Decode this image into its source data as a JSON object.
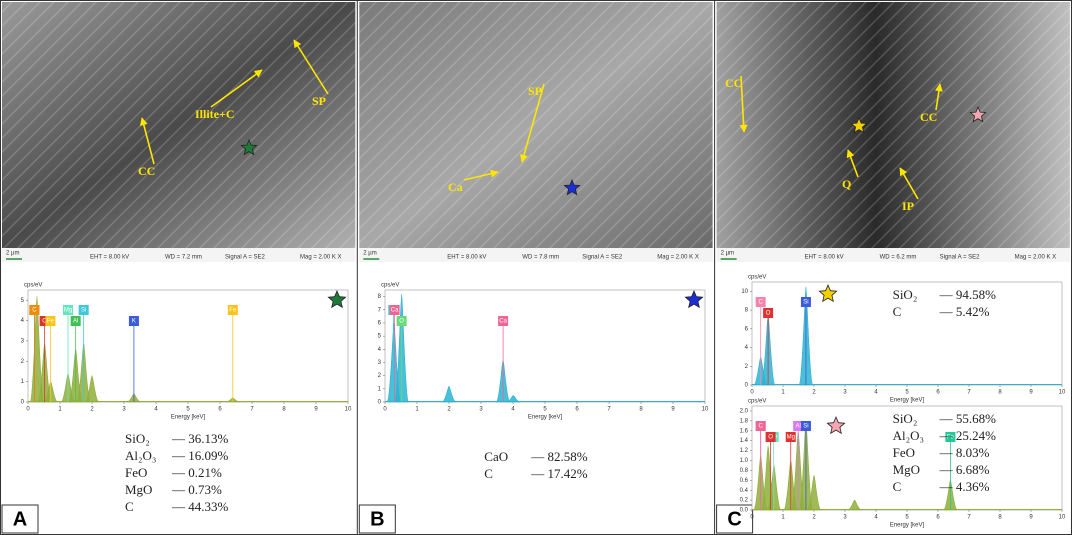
{
  "panels": [
    {
      "letter": "A",
      "sem": {
        "labels": [
          "Illite+C",
          "SP",
          "CC"
        ],
        "scale": "2 µm",
        "star": "#1f7a3a",
        "info": [
          "EHT = 8.00 kV",
          "WD = 7.2 mm",
          "Signal A = SE2",
          "Mag =   2.00 K X"
        ]
      },
      "spectra": [
        {
          "y_label": "cps/eV",
          "x_label": "Energy [keV]",
          "color": "#8fae3a",
          "star": "#1f7a3a",
          "xlim": [
            0,
            10
          ],
          "xticks": [
            0,
            1,
            2,
            3,
            4,
            5,
            6,
            7,
            8,
            9,
            10
          ],
          "ylim": [
            0,
            5.5
          ],
          "yticks": [
            0,
            1,
            2,
            3,
            4,
            5
          ],
          "peaks": {
            "x": [
              0.28,
              0.52,
              0.71,
              1.25,
              1.49,
              1.74,
              2.0,
              3.31,
              6.4
            ],
            "values": [
              5.2,
              2.9,
              1.0,
              1.4,
              2.6,
              2.9,
              1.3,
              0.4,
              0.2
            ]
          },
          "elements": [
            {
              "name": "K",
              "x": 0.2,
              "color": "#3b5bdb"
            },
            {
              "name": "O",
              "x": 0.52,
              "color": "#e03131"
            },
            {
              "name": "C",
              "x": 0.2,
              "color": "#f08c00"
            },
            {
              "name": "Fe",
              "x": 0.7,
              "color": "#fcc419"
            },
            {
              "name": "Mg",
              "x": 1.25,
              "color": "#63e6be"
            },
            {
              "name": "Al",
              "x": 1.49,
              "color": "#40c057"
            },
            {
              "name": "Si",
              "x": 1.74,
              "color": "#3bc9db"
            },
            {
              "name": "K",
              "x": 3.31,
              "color": "#3b5bdb"
            },
            {
              "name": "Fe",
              "x": 6.4,
              "color": "#fcc419"
            }
          ],
          "composition": [
            {
              "name": "SiO₂",
              "value": "— 36.13%"
            },
            {
              "name": "Al₂O₃",
              "value": "— 16.09%"
            },
            {
              "name": "FeO",
              "value": "— 0.21%"
            },
            {
              "name": "MgO",
              "value": "— 0.73%"
            },
            {
              "name": "C",
              "value": "— 44.33%"
            }
          ]
        }
      ]
    },
    {
      "letter": "B",
      "sem": {
        "labels": [
          "SP",
          "Ca"
        ],
        "scale": "2 µm",
        "star": "#1c2fd6",
        "info": [
          "EHT = 8.00 kV",
          "WD = 7.8 mm",
          "Signal A = SE2",
          "Mag =   2.00 K X"
        ]
      },
      "spectra": [
        {
          "y_label": "cps/eV",
          "x_label": "Energy [keV]",
          "color": "#2bb3d1",
          "star": "#1c2fd6",
          "xlim": [
            0,
            10
          ],
          "xticks": [
            0,
            1,
            2,
            3,
            4,
            5,
            6,
            7,
            8,
            9,
            10
          ],
          "ylim": [
            0,
            8.5
          ],
          "yticks": [
            0,
            1,
            2,
            3,
            4,
            5,
            6,
            7,
            8
          ],
          "peaks": {
            "x": [
              0.28,
              0.52,
              2.0,
              3.69,
              4.01
            ],
            "values": [
              6.0,
              8.2,
              1.2,
              3.2,
              0.5
            ]
          },
          "elements": [
            {
              "name": "C",
              "x": 0.26,
              "color": "#3bc9db"
            },
            {
              "name": "O",
              "x": 0.52,
              "color": "#69db7c"
            },
            {
              "name": "Ca",
              "x": 0.3,
              "color": "#f06595"
            },
            {
              "name": "Ca",
              "x": 3.69,
              "color": "#f06595"
            }
          ],
          "composition": [
            {
              "name": "CaO",
              "value": "— 82.58%"
            },
            {
              "name": "C",
              "value": "— 17.42%"
            }
          ]
        }
      ]
    },
    {
      "letter": "C",
      "sem": {
        "labels": [
          "CC",
          "CC",
          "Q",
          "IP"
        ],
        "scale": "2 µm",
        "star": "#f5d000",
        "star2": "#f4a6b0",
        "info": [
          "EHT = 8.00 kV",
          "WD = 6.2 mm",
          "Signal A = SE2",
          "Mag =   2.00 K X"
        ]
      },
      "spectra": [
        {
          "y_label": "cps/eV",
          "x_label": "Energy [keV]",
          "color": "#2bb3d1",
          "star": "#f5d000",
          "xlim": [
            0,
            10
          ],
          "xticks": [
            0,
            1,
            2,
            3,
            4,
            5,
            6,
            7,
            8,
            9,
            10
          ],
          "ylim": [
            0,
            11
          ],
          "yticks": [
            0,
            2,
            4,
            6,
            8,
            10
          ],
          "peaks": {
            "x": [
              0.28,
              0.52,
              1.74
            ],
            "values": [
              3.0,
              7.5,
              10.5
            ]
          },
          "elements": [
            {
              "name": "C",
              "x": 0.28,
              "color": "#f783ac"
            },
            {
              "name": "O",
              "x": 0.52,
              "color": "#e03131"
            },
            {
              "name": "Si",
              "x": 1.74,
              "color": "#3b5bdb"
            }
          ],
          "composition": [
            {
              "name": "SiO₂",
              "value": "— 94.58%"
            },
            {
              "name": "C",
              "value": "— 5.42%"
            }
          ]
        },
        {
          "y_label": "cps/eV",
          "x_label": "Energy [keV]",
          "color": "#8fae3a",
          "star": "#f4a6b0",
          "xlim": [
            0,
            10
          ],
          "xticks": [
            0,
            1,
            2,
            3,
            4,
            5,
            6,
            7,
            8,
            9,
            10
          ],
          "ylim": [
            0,
            2.1
          ],
          "yticks": [
            {
              "value": 0,
              "label": "0.0"
            },
            {
              "value": 0.2,
              "label": "0.2"
            },
            {
              "value": 0.4,
              "label": "0.4"
            },
            {
              "value": 0.6,
              "label": "0.6"
            },
            {
              "value": 0.8,
              "label": "0.8"
            },
            {
              "value": 1,
              "label": "1.0"
            },
            {
              "value": 1.2,
              "label": "1.2"
            },
            {
              "value": 1.4,
              "label": "1.4"
            },
            {
              "value": 1.6,
              "label": "1.6"
            },
            {
              "value": 1.8,
              "label": "1.8"
            },
            {
              "value": 2,
              "label": "2.0"
            }
          ],
          "peaks": {
            "x": [
              0.28,
              0.52,
              0.71,
              1.25,
              1.49,
              1.74,
              2.0,
              3.31,
              6.4
            ],
            "values": [
              1.1,
              1.3,
              0.9,
              1.0,
              1.6,
              1.8,
              0.7,
              0.2,
              0.6
            ]
          },
          "elements": [
            {
              "name": "K",
              "x": 0.28,
              "color": "#e599f7"
            },
            {
              "name": "Fe",
              "x": 0.7,
              "color": "#63e6be"
            },
            {
              "name": "C",
              "x": 0.28,
              "color": "#f06595"
            },
            {
              "name": "O",
              "x": 0.6,
              "color": "#e03131"
            },
            {
              "name": "Al",
              "x": 1.49,
              "color": "#da77f2"
            },
            {
              "name": "Mg",
              "x": 1.25,
              "color": "#e03131"
            },
            {
              "name": "Si",
              "x": 1.74,
              "color": "#3b5bdb"
            },
            {
              "name": "Fe",
              "x": 6.4,
              "color": "#20c997"
            }
          ],
          "composition": [
            {
              "name": "SiO₂",
              "value": "— 55.68%"
            },
            {
              "name": "Al₂O₃",
              "value": "— 25.24%"
            },
            {
              "name": "FeO",
              "value": "— 8.03%"
            },
            {
              "name": "MgO",
              "value": "— 6.68%"
            },
            {
              "name": "C",
              "value": "— 4.36%"
            }
          ]
        }
      ]
    }
  ]
}
